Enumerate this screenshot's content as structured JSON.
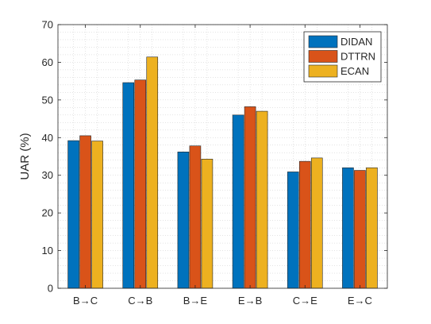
{
  "chart_data": {
    "type": "bar",
    "ylabel": "UAR (%)",
    "ylim": [
      0,
      70
    ],
    "yticks": [
      0,
      10,
      20,
      30,
      40,
      50,
      60,
      70
    ],
    "grid": true,
    "grid_style": "dotted",
    "legend_position": "top-right",
    "categories": [
      "B→C",
      "C→B",
      "B→E",
      "E→B",
      "C→E",
      "E→C"
    ],
    "series": [
      {
        "name": "DIDAN",
        "color": "#0072BD",
        "values": [
          39.2,
          54.6,
          36.2,
          46.0,
          30.9,
          32.0
        ]
      },
      {
        "name": "DTTRN",
        "color": "#D95319",
        "values": [
          40.5,
          55.3,
          37.8,
          48.2,
          33.7,
          31.3
        ]
      },
      {
        "name": "ECAN",
        "color": "#EDB120",
        "values": [
          39.1,
          61.4,
          34.3,
          47.0,
          34.6,
          32.0
        ]
      }
    ]
  }
}
